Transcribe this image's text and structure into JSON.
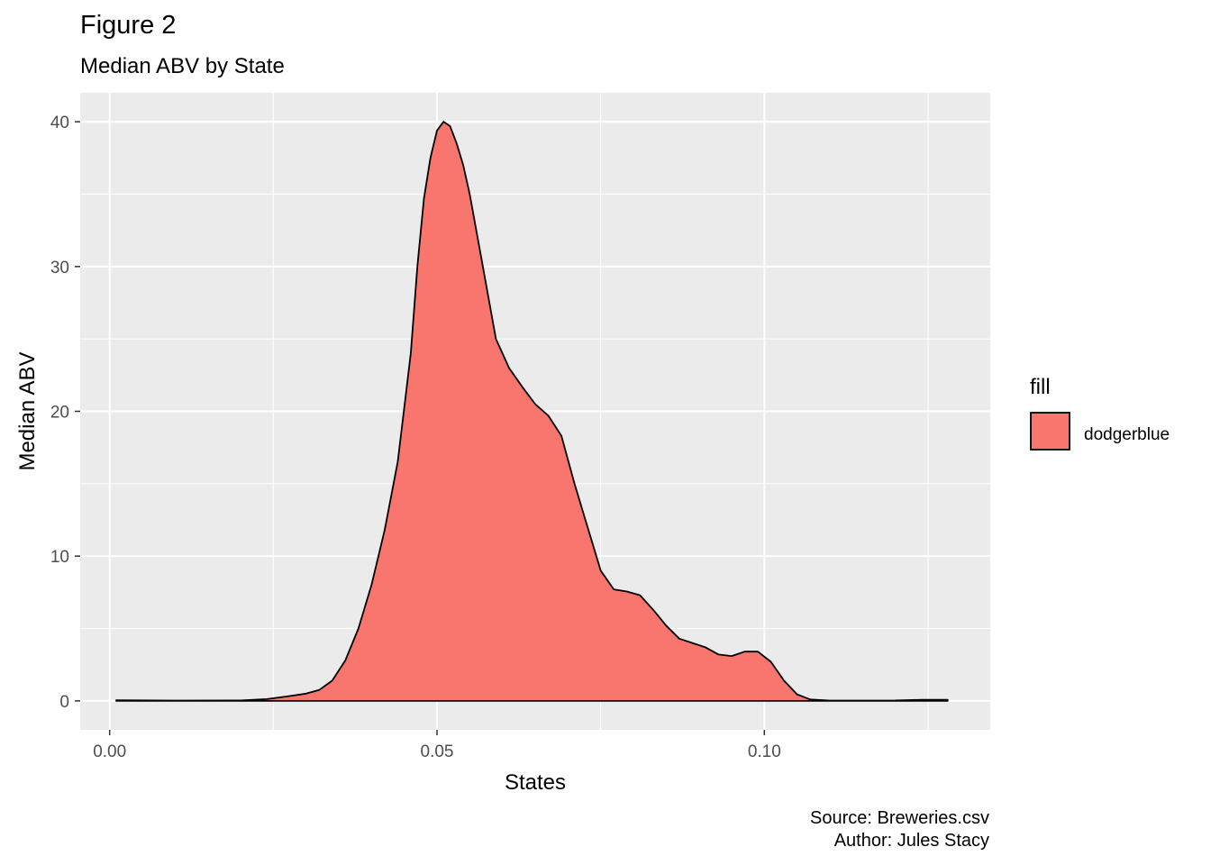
{
  "chart_data": {
    "type": "area",
    "title": "Figure 2",
    "subtitle": "Median ABV by State",
    "xlabel": "States",
    "ylabel": "Median ABV",
    "xlim": [
      -0.0045,
      0.1345
    ],
    "ylim": [
      -2.0,
      42.0
    ],
    "x_ticks": [
      {
        "value": 0.0,
        "label": "0.00"
      },
      {
        "value": 0.05,
        "label": "0.05"
      },
      {
        "value": 0.1,
        "label": "0.10"
      }
    ],
    "y_ticks": [
      {
        "value": 0,
        "label": "0"
      },
      {
        "value": 10,
        "label": "10"
      },
      {
        "value": 20,
        "label": "20"
      },
      {
        "value": 30,
        "label": "30"
      },
      {
        "value": 40,
        "label": "40"
      }
    ],
    "grid": true,
    "legend": {
      "title": "fill",
      "position": "right",
      "entries": [
        {
          "label": "dodgerblue",
          "color": "#F8766D"
        }
      ]
    },
    "series": [
      {
        "fill": "#F8766D",
        "stroke": "#000000",
        "points": [
          [
            0.001,
            0.05
          ],
          [
            0.01,
            0.02
          ],
          [
            0.02,
            0.03
          ],
          [
            0.024,
            0.12
          ],
          [
            0.027,
            0.3
          ],
          [
            0.03,
            0.5
          ],
          [
            0.032,
            0.75
          ],
          [
            0.034,
            1.4
          ],
          [
            0.036,
            2.8
          ],
          [
            0.038,
            5.0
          ],
          [
            0.04,
            8.0
          ],
          [
            0.042,
            11.8
          ],
          [
            0.044,
            16.5
          ],
          [
            0.046,
            24.0
          ],
          [
            0.047,
            30.0
          ],
          [
            0.048,
            34.7
          ],
          [
            0.049,
            37.5
          ],
          [
            0.05,
            39.4
          ],
          [
            0.051,
            40.0
          ],
          [
            0.052,
            39.7
          ],
          [
            0.053,
            38.5
          ],
          [
            0.054,
            37.0
          ],
          [
            0.055,
            35.0
          ],
          [
            0.057,
            30.0
          ],
          [
            0.059,
            25.0
          ],
          [
            0.06,
            24.0
          ],
          [
            0.061,
            23.0
          ],
          [
            0.063,
            21.7
          ],
          [
            0.065,
            20.5
          ],
          [
            0.067,
            19.7
          ],
          [
            0.069,
            18.3
          ],
          [
            0.071,
            15.0
          ],
          [
            0.073,
            12.0
          ],
          [
            0.075,
            9.0
          ],
          [
            0.077,
            7.7
          ],
          [
            0.079,
            7.55
          ],
          [
            0.081,
            7.3
          ],
          [
            0.083,
            6.3
          ],
          [
            0.085,
            5.2
          ],
          [
            0.087,
            4.3
          ],
          [
            0.089,
            4.0
          ],
          [
            0.091,
            3.7
          ],
          [
            0.093,
            3.2
          ],
          [
            0.095,
            3.1
          ],
          [
            0.097,
            3.4
          ],
          [
            0.099,
            3.4
          ],
          [
            0.101,
            2.7
          ],
          [
            0.103,
            1.4
          ],
          [
            0.105,
            0.45
          ],
          [
            0.107,
            0.1
          ],
          [
            0.11,
            0.02
          ],
          [
            0.12,
            0.03
          ],
          [
            0.124,
            0.07
          ],
          [
            0.128,
            0.07
          ]
        ]
      }
    ]
  },
  "caption": {
    "source": "Source: Breweries.csv",
    "author": "Author: Jules Stacy"
  }
}
